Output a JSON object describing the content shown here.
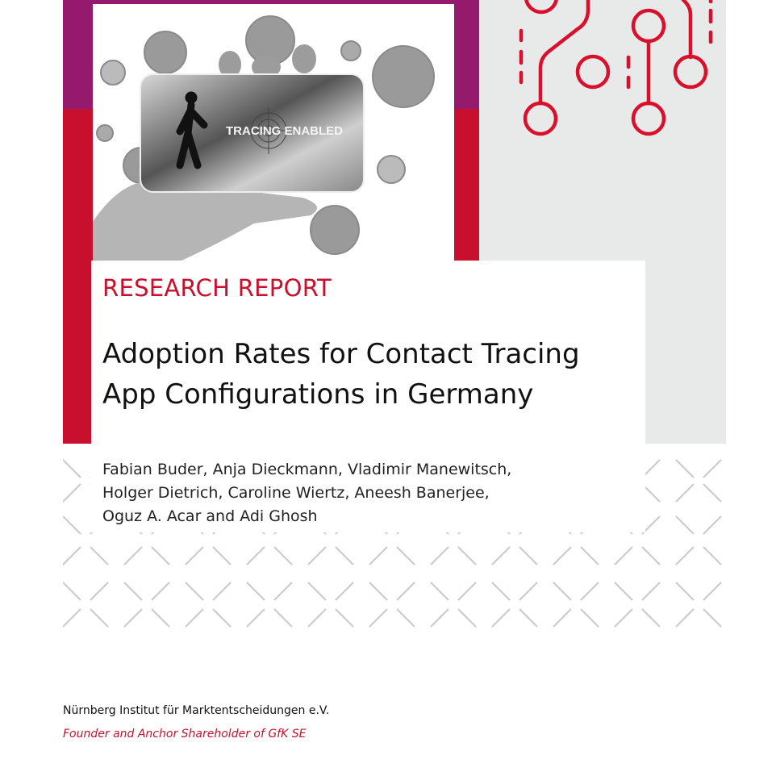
{
  "cover_image": {
    "phone_text": "TRACING ENABLED",
    "icons": [
      "walking-person-icon",
      "target-icon",
      "virus-icon"
    ]
  },
  "report_label": "RESEARCH REPORT",
  "title_line1": "Adoption Rates for Contact Tracing",
  "title_line2": "App Configurations in Germany",
  "authors": [
    "Fabian Buder, Anja Dieckmann, Vladimir Manewitsch,",
    "Holger Dietrich, Caroline Wiertz, Aneesh Banerjee,",
    "Oguz A. Acar and Adi Ghosh"
  ],
  "institution": "Nürnberg Institut für Marktentscheidungen e.V.",
  "tagline": "Founder and Anchor Shareholder of GfK SE",
  "colors": {
    "brand_red": "#c8102e",
    "purple": "#951a6e",
    "panel_grey": "#e8e9e9",
    "pattern_grey": "#cccccc"
  }
}
